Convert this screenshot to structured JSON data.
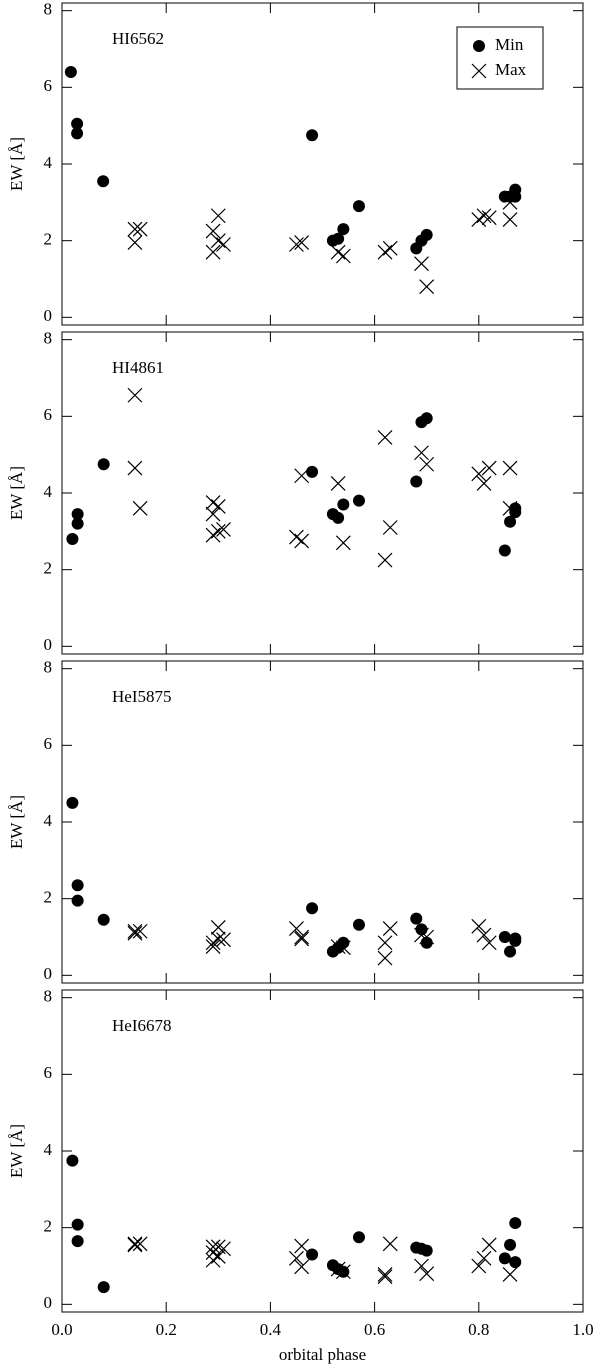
{
  "chart_data": [
    {
      "type": "scatter",
      "annotation": "HI6562",
      "ylabel": "EW [Å]",
      "xlim": [
        0,
        1
      ],
      "ylim": [
        -0.2,
        8.2
      ],
      "xticks": [
        0,
        0.2,
        0.4,
        0.6,
        0.8,
        1
      ],
      "yticks": [
        0,
        2,
        4,
        6,
        8
      ],
      "legend": "upper right",
      "series": [
        {
          "name": "Min",
          "marker": "circle",
          "color": "#000000",
          "x": [
            0.017,
            0.029,
            0.029,
            0.079,
            0.48,
            0.52,
            0.53,
            0.54,
            0.57,
            0.68,
            0.69,
            0.7,
            0.85,
            0.86,
            0.87,
            0.87
          ],
          "values": [
            6.4,
            5.05,
            4.8,
            3.55,
            4.75,
            2.0,
            2.05,
            2.3,
            2.9,
            1.8,
            2.0,
            2.15,
            3.15,
            3.15,
            3.33,
            3.15
          ]
        },
        {
          "name": "Max",
          "marker": "x",
          "color": "#000000",
          "x": [
            0.14,
            0.15,
            0.14,
            0.29,
            0.3,
            0.29,
            0.3,
            0.31,
            0.45,
            0.46,
            0.53,
            0.54,
            0.62,
            0.63,
            0.69,
            0.7,
            0.8,
            0.81,
            0.82,
            0.86,
            0.86
          ],
          "values": [
            2.3,
            2.3,
            1.95,
            2.25,
            2.65,
            1.7,
            2.0,
            1.9,
            1.9,
            1.95,
            1.7,
            1.6,
            1.7,
            1.8,
            1.4,
            0.8,
            2.55,
            2.65,
            2.6,
            2.55,
            3.0
          ]
        }
      ]
    },
    {
      "type": "scatter",
      "annotation": "HI4861",
      "ylabel": "EW [Å]",
      "xlim": [
        0,
        1
      ],
      "ylim": [
        -0.2,
        8.2
      ],
      "xticks": [
        0,
        0.2,
        0.4,
        0.6,
        0.8,
        1
      ],
      "yticks": [
        0,
        2,
        4,
        6,
        8
      ],
      "series": [
        {
          "marker": "circle",
          "color": "#000000",
          "x": [
            0.02,
            0.03,
            0.03,
            0.08,
            0.48,
            0.52,
            0.53,
            0.54,
            0.57,
            0.68,
            0.69,
            0.7,
            0.85,
            0.86,
            0.87,
            0.87
          ],
          "values": [
            2.8,
            3.45,
            3.2,
            4.75,
            4.55,
            3.45,
            3.35,
            3.7,
            3.8,
            4.3,
            5.85,
            5.95,
            2.5,
            3.25,
            3.6,
            3.5
          ]
        },
        {
          "marker": "x",
          "color": "#000000",
          "x": [
            0.14,
            0.14,
            0.15,
            0.29,
            0.3,
            0.29,
            0.29,
            0.3,
            0.31,
            0.45,
            0.46,
            0.46,
            0.53,
            0.54,
            0.62,
            0.63,
            0.62,
            0.69,
            0.7,
            0.8,
            0.81,
            0.82,
            0.86,
            0.86
          ],
          "values": [
            6.55,
            4.65,
            3.6,
            3.75,
            3.65,
            3.45,
            2.9,
            3.0,
            3.05,
            2.85,
            2.75,
            4.45,
            4.25,
            2.7,
            5.45,
            3.1,
            2.25,
            5.05,
            4.75,
            4.5,
            4.25,
            4.65,
            4.65,
            3.6
          ]
        }
      ]
    },
    {
      "type": "scatter",
      "annotation": "HeI5875",
      "ylabel": "EW [Å]",
      "xlim": [
        0,
        1
      ],
      "ylim": [
        -0.2,
        8.2
      ],
      "xticks": [
        0,
        0.2,
        0.4,
        0.6,
        0.8,
        1
      ],
      "yticks": [
        0,
        2,
        4,
        6,
        8
      ],
      "series": [
        {
          "marker": "circle",
          "color": "#000000",
          "x": [
            0.02,
            0.03,
            0.03,
            0.08,
            0.48,
            0.52,
            0.53,
            0.54,
            0.57,
            0.68,
            0.69,
            0.7,
            0.85,
            0.86,
            0.87,
            0.87
          ],
          "values": [
            4.5,
            2.35,
            1.95,
            1.45,
            1.75,
            0.62,
            0.72,
            0.85,
            1.32,
            1.48,
            1.2,
            0.85,
            1.0,
            0.62,
            0.96,
            0.9
          ]
        },
        {
          "marker": "x",
          "color": "#000000",
          "x": [
            0.14,
            0.15,
            0.14,
            0.29,
            0.3,
            0.29,
            0.3,
            0.31,
            0.45,
            0.46,
            0.46,
            0.53,
            0.54,
            0.62,
            0.63,
            0.62,
            0.69,
            0.7,
            0.8,
            0.81,
            0.82
          ],
          "values": [
            1.15,
            1.15,
            1.1,
            0.85,
            1.25,
            0.75,
            0.95,
            0.93,
            1.22,
            1.0,
            0.95,
            0.75,
            0.72,
            0.85,
            1.22,
            0.45,
            1.05,
            1.0,
            1.28,
            1.05,
            0.85
          ]
        }
      ]
    },
    {
      "type": "scatter",
      "annotation": "HeI6678",
      "ylabel": "EW [Å]",
      "xlabel": "orbital phase",
      "xlim": [
        0,
        1
      ],
      "ylim": [
        -0.2,
        8.2
      ],
      "xticks": [
        {
          "value": 0,
          "label": "0.0"
        },
        0.2,
        0.4,
        0.6,
        0.8,
        {
          "value": 1,
          "label": "1.0"
        }
      ],
      "yticks": [
        0,
        2,
        4,
        6,
        8
      ],
      "series": [
        {
          "marker": "circle",
          "color": "#000000",
          "x": [
            0.02,
            0.03,
            0.03,
            0.08,
            0.48,
            0.52,
            0.53,
            0.54,
            0.57,
            0.68,
            0.69,
            0.7,
            0.85,
            0.86,
            0.87,
            0.87
          ],
          "values": [
            3.75,
            2.08,
            1.65,
            0.45,
            1.3,
            1.02,
            0.92,
            0.85,
            1.75,
            1.48,
            1.45,
            1.4,
            1.2,
            1.55,
            2.12,
            1.1
          ]
        },
        {
          "marker": "x",
          "color": "#000000",
          "x": [
            0.14,
            0.15,
            0.14,
            0.29,
            0.3,
            0.29,
            0.29,
            0.3,
            0.31,
            0.45,
            0.46,
            0.46,
            0.53,
            0.54,
            0.62,
            0.63,
            0.62,
            0.69,
            0.7,
            0.8,
            0.81,
            0.82,
            0.86
          ],
          "values": [
            1.58,
            1.58,
            1.55,
            1.5,
            1.5,
            1.35,
            1.15,
            1.25,
            1.45,
            1.2,
            0.98,
            1.52,
            0.92,
            0.85,
            0.78,
            1.58,
            0.72,
            1.0,
            0.8,
            1.0,
            1.2,
            1.55,
            0.78
          ]
        }
      ]
    }
  ]
}
